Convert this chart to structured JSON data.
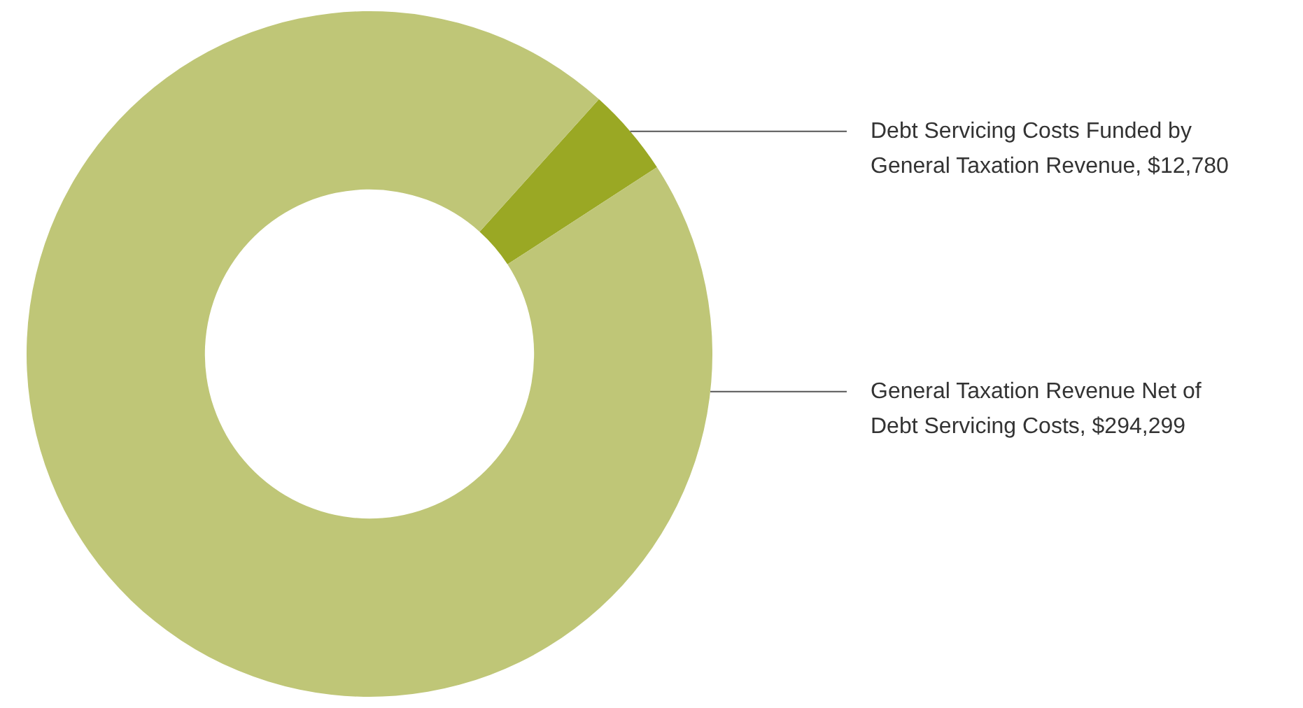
{
  "chart_data": {
    "type": "donut",
    "categories": [
      "Debt Servicing Costs Funded by General Taxation Revenue",
      "General Taxation Revenue Net of Debt Servicing Costs"
    ],
    "values": [
      12780,
      294299
    ],
    "colors": [
      "#9aa824",
      "#bfc677"
    ],
    "value_labels": [
      "$12,780",
      "$294,299"
    ],
    "legend": false
  }
}
